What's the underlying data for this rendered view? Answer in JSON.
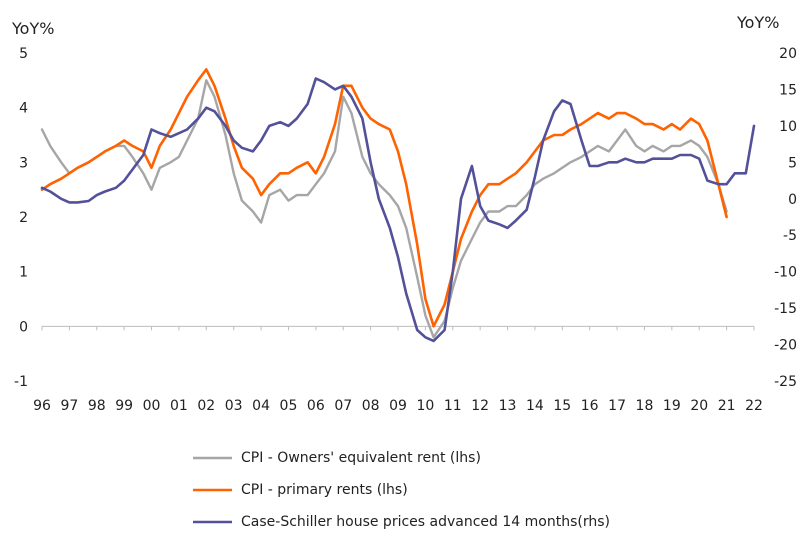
{
  "chart_data": {
    "type": "line",
    "left_axis": {
      "unit_label": "YoY%",
      "ylim": [
        -1,
        5
      ],
      "ticks": [
        -1,
        0,
        1,
        2,
        3,
        4,
        5
      ]
    },
    "right_axis": {
      "unit_label": "YoY%",
      "ylim": [
        -25,
        20
      ],
      "ticks": [
        -25,
        -20,
        -15,
        -10,
        -5,
        0,
        5,
        10,
        15,
        20
      ]
    },
    "x_axis": {
      "xlim": [
        1996,
        2022
      ],
      "tick_labels": [
        "96",
        "97",
        "98",
        "99",
        "00",
        "01",
        "02",
        "03",
        "04",
        "05",
        "06",
        "07",
        "08",
        "09",
        "10",
        "11",
        "12",
        "13",
        "14",
        "15",
        "16",
        "17",
        "18",
        "19",
        "20",
        "21",
        "22"
      ]
    },
    "grid": false,
    "legend_position": "bottom",
    "series": [
      {
        "name": "CPI - Owners' equivalent rent (lhs)",
        "axis": "left",
        "color": "#a6a6a6",
        "x": [
          1996.0,
          1996.3,
          1996.7,
          1997.0,
          1997.3,
          1997.7,
          1998.0,
          1998.3,
          1998.7,
          1999.0,
          1999.3,
          1999.7,
          2000.0,
          2000.3,
          2000.7,
          2001.0,
          2001.3,
          2001.7,
          2002.0,
          2002.3,
          2002.7,
          2003.0,
          2003.3,
          2003.7,
          2004.0,
          2004.3,
          2004.7,
          2005.0,
          2005.3,
          2005.7,
          2006.0,
          2006.3,
          2006.7,
          2007.0,
          2007.3,
          2007.7,
          2008.0,
          2008.3,
          2008.7,
          2009.0,
          2009.3,
          2009.7,
          2010.0,
          2010.3,
          2010.7,
          2011.0,
          2011.3,
          2011.7,
          2012.0,
          2012.3,
          2012.7,
          2013.0,
          2013.3,
          2013.7,
          2014.0,
          2014.3,
          2014.7,
          2015.0,
          2015.3,
          2015.7,
          2016.0,
          2016.3,
          2016.7,
          2017.0,
          2017.3,
          2017.7,
          2018.0,
          2018.3,
          2018.7,
          2019.0,
          2019.3,
          2019.7,
          2020.0,
          2020.3,
          2020.7,
          2021.0
        ],
        "y": [
          3.6,
          3.3,
          3.0,
          2.8,
          2.9,
          3.0,
          3.1,
          3.2,
          3.3,
          3.3,
          3.1,
          2.8,
          2.5,
          2.9,
          3.0,
          3.1,
          3.4,
          3.8,
          4.5,
          4.2,
          3.5,
          2.8,
          2.3,
          2.1,
          1.9,
          2.4,
          2.5,
          2.3,
          2.4,
          2.4,
          2.6,
          2.8,
          3.2,
          4.2,
          3.9,
          3.1,
          2.8,
          2.6,
          2.4,
          2.2,
          1.8,
          0.9,
          0.2,
          -0.2,
          0.1,
          0.7,
          1.2,
          1.6,
          1.9,
          2.1,
          2.1,
          2.2,
          2.2,
          2.4,
          2.6,
          2.7,
          2.8,
          2.9,
          3.0,
          3.1,
          3.2,
          3.3,
          3.2,
          3.4,
          3.6,
          3.3,
          3.2,
          3.3,
          3.2,
          3.3,
          3.3,
          3.4,
          3.3,
          3.1,
          2.6,
          2.1
        ]
      },
      {
        "name": "CPI - primary rents (lhs)",
        "axis": "left",
        "color": "#ff6200",
        "x": [
          1996.0,
          1996.3,
          1996.7,
          1997.0,
          1997.3,
          1997.7,
          1998.0,
          1998.3,
          1998.7,
          1999.0,
          1999.3,
          1999.7,
          2000.0,
          2000.3,
          2000.7,
          2001.0,
          2001.3,
          2001.7,
          2002.0,
          2002.3,
          2002.7,
          2003.0,
          2003.3,
          2003.7,
          2004.0,
          2004.3,
          2004.7,
          2005.0,
          2005.3,
          2005.7,
          2006.0,
          2006.3,
          2006.7,
          2007.0,
          2007.3,
          2007.7,
          2008.0,
          2008.3,
          2008.7,
          2009.0,
          2009.3,
          2009.7,
          2010.0,
          2010.3,
          2010.7,
          2011.0,
          2011.3,
          2011.7,
          2012.0,
          2012.3,
          2012.7,
          2013.0,
          2013.3,
          2013.7,
          2014.0,
          2014.3,
          2014.7,
          2015.0,
          2015.3,
          2015.7,
          2016.0,
          2016.3,
          2016.7,
          2017.0,
          2017.3,
          2017.7,
          2018.0,
          2018.3,
          2018.7,
          2019.0,
          2019.3,
          2019.7,
          2020.0,
          2020.3,
          2020.7,
          2021.0
        ],
        "y": [
          2.5,
          2.6,
          2.7,
          2.8,
          2.9,
          3.0,
          3.1,
          3.2,
          3.3,
          3.4,
          3.3,
          3.2,
          2.9,
          3.3,
          3.6,
          3.9,
          4.2,
          4.5,
          4.7,
          4.4,
          3.8,
          3.3,
          2.9,
          2.7,
          2.4,
          2.6,
          2.8,
          2.8,
          2.9,
          3.0,
          2.8,
          3.1,
          3.7,
          4.4,
          4.4,
          4.0,
          3.8,
          3.7,
          3.6,
          3.2,
          2.6,
          1.5,
          0.5,
          0.0,
          0.4,
          1.0,
          1.6,
          2.1,
          2.4,
          2.6,
          2.6,
          2.7,
          2.8,
          3.0,
          3.2,
          3.4,
          3.5,
          3.5,
          3.6,
          3.7,
          3.8,
          3.9,
          3.8,
          3.9,
          3.9,
          3.8,
          3.7,
          3.7,
          3.6,
          3.7,
          3.6,
          3.8,
          3.7,
          3.4,
          2.6,
          2.0
        ]
      },
      {
        "name": "Case-Schiller house prices advanced 14 months(rhs)",
        "axis": "right",
        "color": "#525199",
        "x": [
          1996.0,
          1996.3,
          1996.7,
          1997.0,
          1997.3,
          1997.7,
          1998.0,
          1998.3,
          1998.7,
          1999.0,
          1999.3,
          1999.7,
          2000.0,
          2000.3,
          2000.7,
          2001.0,
          2001.3,
          2001.7,
          2002.0,
          2002.3,
          2002.7,
          2003.0,
          2003.3,
          2003.7,
          2004.0,
          2004.3,
          2004.7,
          2005.0,
          2005.3,
          2005.7,
          2006.0,
          2006.3,
          2006.7,
          2007.0,
          2007.3,
          2007.7,
          2008.0,
          2008.3,
          2008.7,
          2009.0,
          2009.3,
          2009.7,
          2010.0,
          2010.3,
          2010.7,
          2011.0,
          2011.3,
          2011.7,
          2012.0,
          2012.3,
          2012.7,
          2013.0,
          2013.3,
          2013.7,
          2014.0,
          2014.3,
          2014.7,
          2015.0,
          2015.3,
          2015.7,
          2016.0,
          2016.3,
          2016.7,
          2017.0,
          2017.3,
          2017.7,
          2018.0,
          2018.3,
          2018.7,
          2019.0,
          2019.3,
          2019.7,
          2020.0,
          2020.3,
          2020.7,
          2021.0,
          2021.3,
          2021.7,
          2022.0
        ],
        "y": [
          1.5,
          1.0,
          0.0,
          -0.5,
          -0.5,
          -0.3,
          0.5,
          1.0,
          1.5,
          2.5,
          4.0,
          6.0,
          9.5,
          9.0,
          8.5,
          9.0,
          9.5,
          11.0,
          12.5,
          12.0,
          10.0,
          8.0,
          7.0,
          6.5,
          8.0,
          10.0,
          10.5,
          10.0,
          11.0,
          13.0,
          16.5,
          16.0,
          15.0,
          15.5,
          14.0,
          11.0,
          5.0,
          0.0,
          -4.0,
          -8.0,
          -13.0,
          -18.0,
          -19.0,
          -19.5,
          -18.0,
          -10.0,
          0.0,
          4.5,
          -1.0,
          -3.0,
          -3.5,
          -4.0,
          -3.0,
          -1.5,
          3.0,
          8.0,
          12.0,
          13.5,
          13.0,
          8.0,
          4.5,
          4.5,
          5.0,
          5.0,
          5.5,
          5.0,
          5.0,
          5.5,
          5.5,
          5.5,
          6.0,
          6.0,
          5.5,
          2.5,
          2.0,
          2.0,
          3.5,
          3.5,
          10.0
        ]
      }
    ]
  }
}
